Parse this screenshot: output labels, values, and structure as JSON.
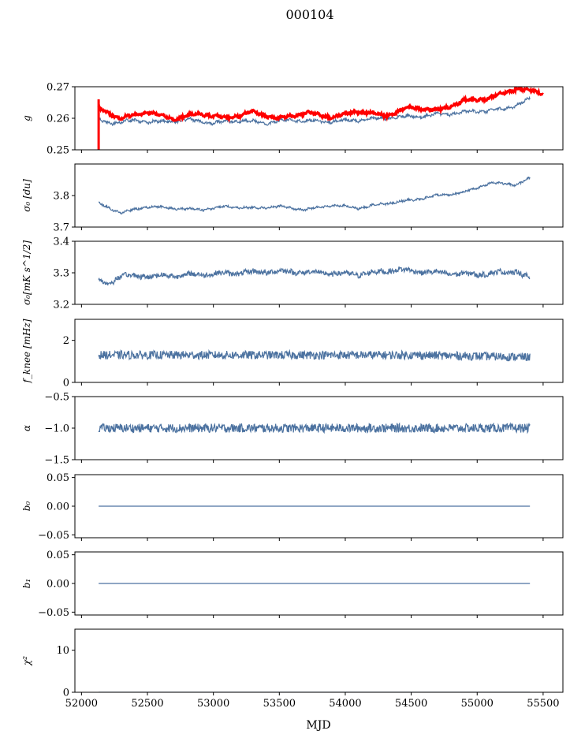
{
  "chart_data": {
    "type": "line",
    "title": "000104",
    "xlabel": "MJD",
    "xlim": [
      51950,
      55650
    ],
    "xticks": [
      52000,
      52500,
      53000,
      53500,
      54000,
      54500,
      55000,
      55500
    ],
    "x_start": 52130,
    "x_end": 55400,
    "line_color": "#4c72a0",
    "overlay_color": "#ff0000",
    "panels": [
      {
        "id": "g",
        "ylabel": "g",
        "ylim": [
          0.25,
          0.27
        ],
        "yticks": [
          0.25,
          0.26,
          0.27
        ],
        "ytick_labels": [
          "0.25",
          "0.26",
          "0.27"
        ],
        "series": [
          {
            "color": "#4c72a0",
            "x": [
              52130,
              52200,
              52400,
              52600,
              52800,
              53000,
              53200,
              53400,
              53600,
              53800,
              54000,
              54200,
              54400,
              54600,
              54800,
              55000,
              55200,
              55400
            ],
            "y": [
              0.2595,
              0.2585,
              0.2592,
              0.2588,
              0.2595,
              0.2585,
              0.2593,
              0.2585,
              0.2595,
              0.259,
              0.2592,
              0.2598,
              0.2603,
              0.2608,
              0.2615,
              0.2622,
              0.2628,
              0.266
            ]
          },
          {
            "color": "#ff0000",
            "x": [
              52130,
              52300,
              52500,
              52700,
              52900,
              53100,
              53300,
              53500,
              53700,
              53900,
              54100,
              54300,
              54500,
              54700,
              54900,
              55100,
              55300,
              55500
            ],
            "y": [
              0.263,
              0.26,
              0.262,
              0.2598,
              0.2615,
              0.26,
              0.262,
              0.2598,
              0.2618,
              0.2603,
              0.2622,
              0.2608,
              0.2635,
              0.2625,
              0.2655,
              0.2665,
              0.2695,
              0.268
            ]
          }
        ]
      },
      {
        "id": "sigma0_du",
        "ylabel": "σ₀ [du]",
        "ylim": [
          3.7,
          3.9
        ],
        "yticks": [
          3.7,
          3.8
        ],
        "ytick_labels": [
          "3.7",
          "3.8"
        ],
        "series": [
          {
            "color": "#4c72a0",
            "x": [
              52130,
              52300,
              52500,
              52700,
              52900,
              53100,
              53300,
              53500,
              53700,
              53900,
              54100,
              54300,
              54500,
              54700,
              54900,
              55100,
              55300,
              55400
            ],
            "y": [
              3.775,
              3.745,
              3.765,
              3.76,
              3.755,
              3.765,
              3.76,
              3.765,
              3.755,
              3.77,
              3.76,
              3.775,
              3.785,
              3.8,
              3.81,
              3.84,
              3.835,
              3.855
            ]
          }
        ]
      },
      {
        "id": "sigma0_mk",
        "ylabel": "σ₀[mK s^1/2]",
        "ylim": [
          3.2,
          3.4
        ],
        "yticks": [
          3.2,
          3.3,
          3.4
        ],
        "ytick_labels": [
          "3.2",
          "3.3",
          "3.4"
        ],
        "series": [
          {
            "color": "#4c72a0",
            "x": [
              52130,
              52200,
              52300,
              52600,
              52900,
              53200,
              53500,
              53800,
              54100,
              54400,
              54700,
              55000,
              55300,
              55400
            ],
            "y": [
              3.275,
              3.265,
              3.29,
              3.29,
              3.295,
              3.3,
              3.305,
              3.3,
              3.295,
              3.31,
              3.3,
              3.295,
              3.305,
              3.28
            ]
          }
        ]
      },
      {
        "id": "fknee",
        "ylabel": "f_knee [mHz]",
        "ylim": [
          0,
          3
        ],
        "yticks": [
          0,
          2
        ],
        "ytick_labels": [
          "0",
          "2"
        ],
        "series": [
          {
            "color": "#4c72a0",
            "x": [
              52130,
              52500,
              53000,
              53500,
              54000,
              54500,
              55000,
              55400
            ],
            "y": [
              1.3,
              1.3,
              1.3,
              1.3,
              1.3,
              1.3,
              1.25,
              1.2
            ]
          }
        ]
      },
      {
        "id": "alpha",
        "ylabel": "α",
        "ylim": [
          -1.5,
          -0.5
        ],
        "yticks": [
          -1.5,
          -1.0,
          -0.5
        ],
        "ytick_labels": [
          "−1.5",
          "−1.0",
          "−0.5"
        ],
        "series": [
          {
            "color": "#4c72a0",
            "x": [
              52130,
              52500,
              53000,
              53500,
              54000,
              54500,
              55000,
              55400
            ],
            "y": [
              -1.0,
              -1.0,
              -1.0,
              -1.0,
              -1.0,
              -1.0,
              -1.0,
              -1.0
            ]
          }
        ]
      },
      {
        "id": "b0",
        "ylabel": "b₀",
        "ylim": [
          -0.055,
          0.055
        ],
        "yticks": [
          -0.05,
          0.0,
          0.05
        ],
        "ytick_labels": [
          "−0.05",
          "0.00",
          "0.05"
        ],
        "series": [
          {
            "color": "#4c72a0",
            "x": [
              52130,
              55400
            ],
            "y": [
              0.0,
              0.0
            ]
          }
        ]
      },
      {
        "id": "b1",
        "ylabel": "b₁",
        "ylim": [
          -0.055,
          0.055
        ],
        "yticks": [
          -0.05,
          0.0,
          0.05
        ],
        "ytick_labels": [
          "−0.05",
          "0.00",
          "0.05"
        ],
        "series": [
          {
            "color": "#4c72a0",
            "x": [
              52130,
              55400
            ],
            "y": [
              0.0,
              0.0
            ]
          }
        ]
      },
      {
        "id": "chi2",
        "ylabel": "χ²",
        "ylim": [
          0,
          15
        ],
        "yticks": [
          0,
          10
        ],
        "ytick_labels": [
          "0",
          "10"
        ],
        "series": [
          {
            "color": "#4c72a0",
            "x": [
              52130,
              55400
            ],
            "y": [
              0.0,
              0.0
            ]
          }
        ]
      }
    ]
  }
}
